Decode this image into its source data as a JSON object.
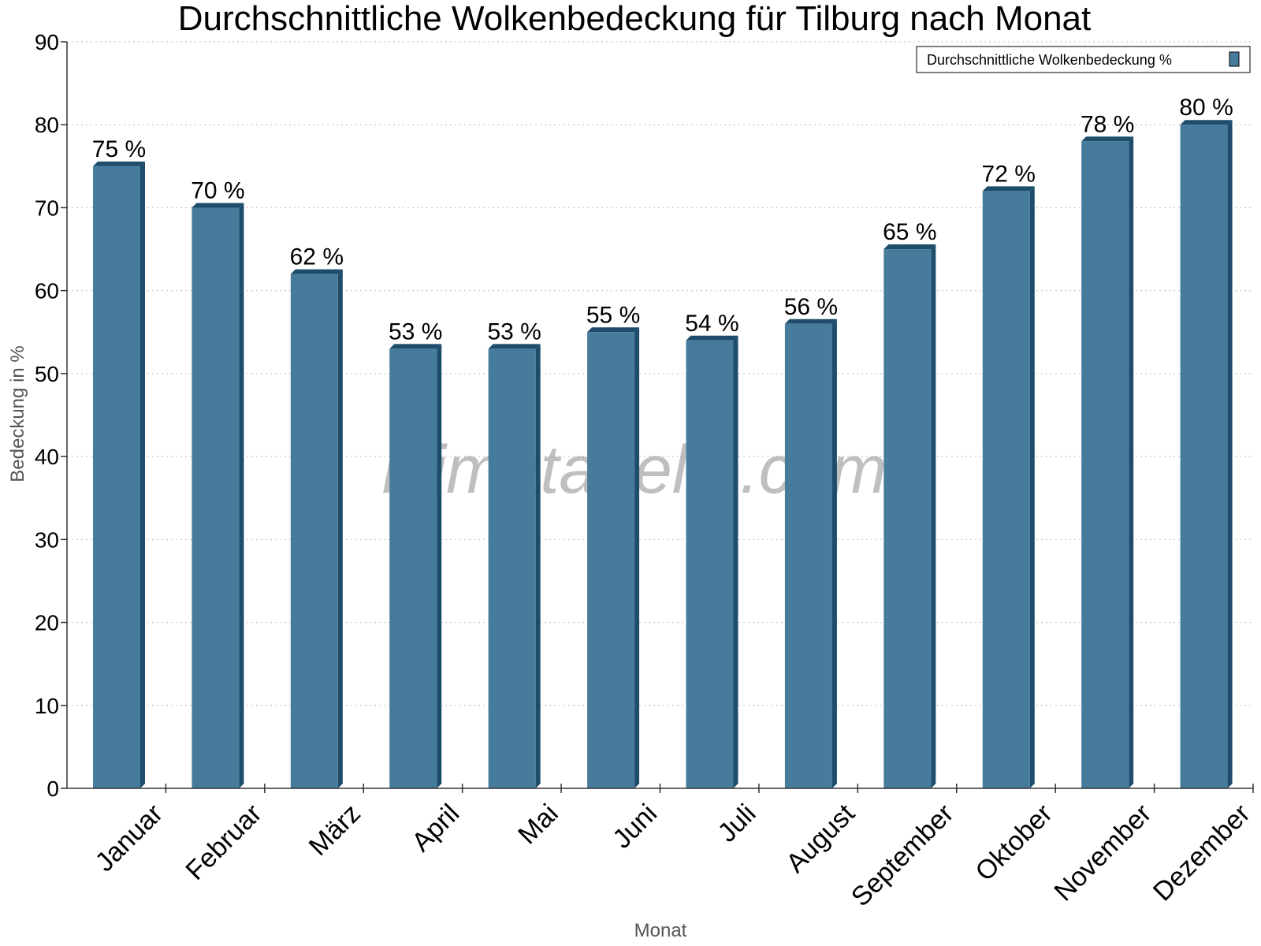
{
  "chart_data": {
    "type": "bar",
    "title": "Durchschnittliche Wolkenbedeckung für Tilburg nach Monat",
    "xlabel": "Monat",
    "ylabel": "Bedeckung in %",
    "categories": [
      "Januar",
      "Februar",
      "März",
      "April",
      "Mai",
      "Juni",
      "Juli",
      "August",
      "September",
      "Oktober",
      "November",
      "Dezember"
    ],
    "series": [
      {
        "name": "Durchschnittliche Wolkenbedeckung %",
        "values": [
          75,
          70,
          62,
          53,
          53,
          55,
          54,
          56,
          65,
          72,
          78,
          80
        ],
        "labels": [
          "75 %",
          "70 %",
          "62 %",
          "53 %",
          "53 %",
          "55 %",
          "54 %",
          "56 %",
          "65 %",
          "72 %",
          "78 %",
          "80 %"
        ]
      }
    ],
    "ylim": [
      0,
      90
    ],
    "yticks": [
      0,
      10,
      20,
      30,
      40,
      50,
      60,
      70,
      80,
      90
    ],
    "grid": true,
    "legend": "top-right",
    "colors": {
      "bar": "#467b9c",
      "bar_dark": "#1d4d6b",
      "grid": "#c8c8c8",
      "axis": "#333333"
    }
  },
  "watermark": "klimatabelle.com"
}
